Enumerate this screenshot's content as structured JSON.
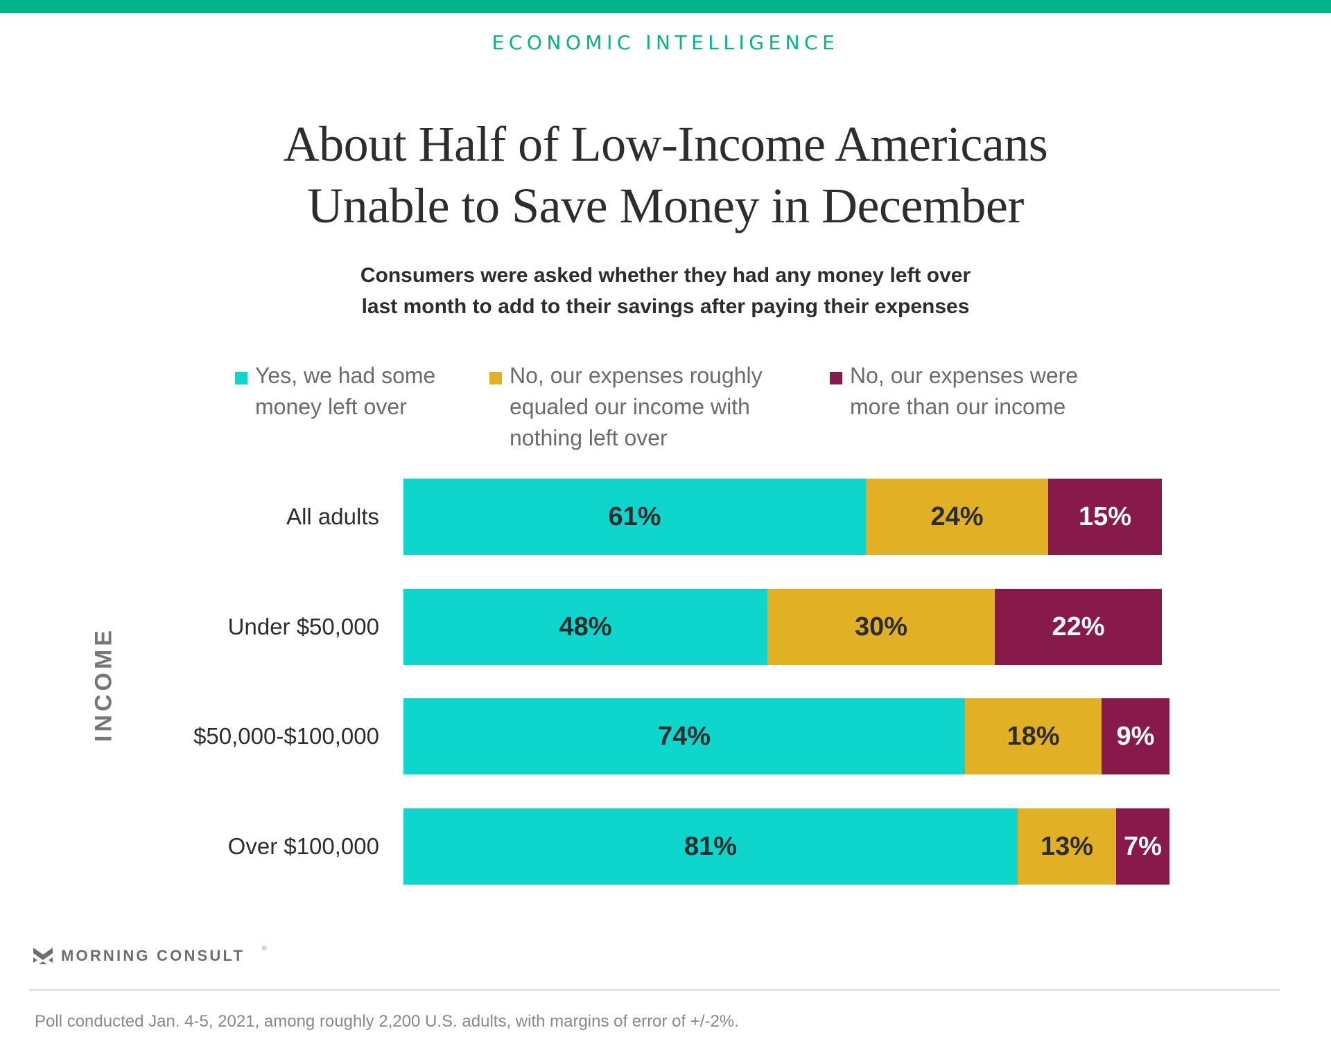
{
  "header": {
    "kicker": "ECONOMIC INTELLIGENCE",
    "title_lines": [
      "About Half of Low-Income Americans",
      "Unable to Save Money in December"
    ],
    "subtitle_lines": [
      "Consumers were asked whether they had any money left over",
      "last month to add to their savings after paying their expenses"
    ]
  },
  "colors": {
    "brand": "#00b48a",
    "yes": "#0fd6cd",
    "equal": "#e1b024",
    "more": "#871a4a",
    "label_dark": "#2d2d2d",
    "label_light": "#ffffff"
  },
  "chart_data": {
    "type": "bar",
    "orientation": "horizontal",
    "stacked": true,
    "title": "About Half of Low-Income Americans Unable to Save Money in December",
    "subtitle": "Consumers were asked whether they had any money left over last month to add to their savings after paying their expenses",
    "ylabel": "INCOME",
    "xlabel": "",
    "categories": [
      "All adults",
      "Under $50,000",
      "$50,000-$100,000",
      "Over $100,000"
    ],
    "series": [
      {
        "name": "Yes, we had some money left over",
        "legend_lines": [
          "Yes, we had some",
          "money left over"
        ],
        "color": "#0fd6cd",
        "label_color": "#2d2d2d",
        "values": [
          61,
          48,
          74,
          81
        ],
        "labels": [
          "61%",
          "48%",
          "74%",
          "81%"
        ]
      },
      {
        "name": "No, our expenses roughly equaled our income with nothing left over",
        "legend_lines": [
          "No, our expenses roughly",
          "equaled our income with",
          "nothing left over"
        ],
        "color": "#e1b024",
        "label_color": "#2d2d2d",
        "values": [
          24,
          30,
          18,
          13
        ],
        "labels": [
          "24%",
          "30%",
          "18%",
          "13%"
        ]
      },
      {
        "name": "No, our expenses were more than our income",
        "legend_lines": [
          "No, our expenses were",
          "more than our income"
        ],
        "color": "#871a4a",
        "label_color": "#ffffff",
        "values": [
          15,
          22,
          9,
          7
        ],
        "labels": [
          "15%",
          "22%",
          "9%",
          "7%"
        ]
      }
    ],
    "xlim": [
      0,
      100
    ],
    "grid": false,
    "legend_position": "top"
  },
  "footer": {
    "brand": "MORNING CONSULT",
    "registered_mark": "®",
    "note": "Poll conducted Jan. 4-5, 2021, among roughly 2,200 U.S. adults, with margins of error of +/-2%."
  }
}
